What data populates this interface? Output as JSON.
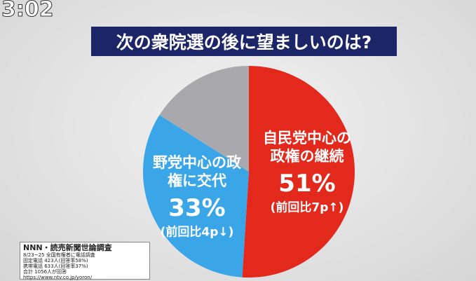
{
  "clock": "3:02",
  "source": [
    "NNN・読売新聞世論調査",
    "8/23~25 全国有権者に電話調査",
    "固定電話 423人(回答率58%)",
    "携帯電話 633人(回答率37%)",
    "合計 1056人が回答",
    "https://www.ntv.co.jp/yoron/"
  ],
  "chart_data": {
    "type": "pie",
    "title": "次の衆院選の後に望ましいのは?",
    "categories": [
      "自民党中心の政権の継続",
      "野党中心の政権に交代",
      null
    ],
    "values": [
      51,
      33,
      16
    ],
    "value_labels": [
      "51%",
      "33%",
      null
    ],
    "change_labels": [
      "(前回比7p↑)",
      "(前回比4p↓)",
      null
    ],
    "colors": [
      "#e3281c",
      "#3aa6e8",
      "#a9a9ad"
    ]
  }
}
